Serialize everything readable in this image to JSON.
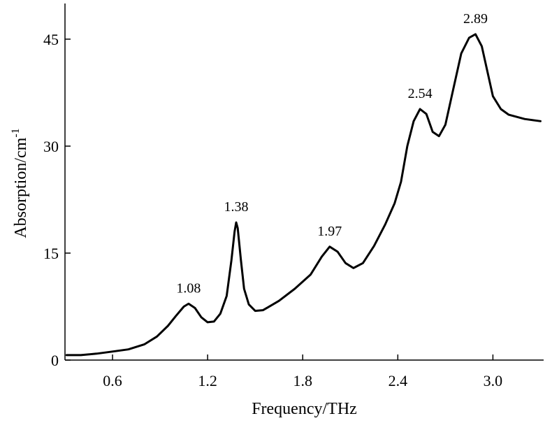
{
  "chart_data": {
    "type": "line",
    "title": "",
    "xlabel": "Frequency/THz",
    "ylabel_main": "Absorption/cm",
    "ylabel_sup": "-1",
    "xlim": [
      0.3,
      3.32
    ],
    "ylim": [
      0,
      50
    ],
    "grid": false,
    "legend": "none",
    "x_ticks": [
      {
        "value": 0.6,
        "label": "0.6"
      },
      {
        "value": 1.2,
        "label": "1.2"
      },
      {
        "value": 1.8,
        "label": "1.8"
      },
      {
        "value": 2.4,
        "label": "2.4"
      },
      {
        "value": 3.0,
        "label": "3.0"
      }
    ],
    "y_ticks": [
      {
        "value": 0,
        "label": "0"
      },
      {
        "value": 15,
        "label": "15"
      },
      {
        "value": 30,
        "label": "30"
      },
      {
        "value": 45,
        "label": "45"
      }
    ],
    "series": [
      {
        "color": "#000000",
        "points": [
          [
            0.31,
            0.7
          ],
          [
            0.4,
            0.7
          ],
          [
            0.5,
            0.9
          ],
          [
            0.6,
            1.2
          ],
          [
            0.7,
            1.5
          ],
          [
            0.8,
            2.2
          ],
          [
            0.88,
            3.3
          ],
          [
            0.95,
            4.8
          ],
          [
            1.0,
            6.2
          ],
          [
            1.05,
            7.5
          ],
          [
            1.08,
            7.9
          ],
          [
            1.12,
            7.3
          ],
          [
            1.16,
            6.0
          ],
          [
            1.2,
            5.3
          ],
          [
            1.24,
            5.4
          ],
          [
            1.28,
            6.5
          ],
          [
            1.32,
            9.0
          ],
          [
            1.35,
            14.0
          ],
          [
            1.37,
            18.0
          ],
          [
            1.38,
            19.3
          ],
          [
            1.39,
            18.5
          ],
          [
            1.41,
            14.0
          ],
          [
            1.43,
            10.0
          ],
          [
            1.46,
            7.8
          ],
          [
            1.5,
            6.9
          ],
          [
            1.55,
            7.0
          ],
          [
            1.65,
            8.3
          ],
          [
            1.75,
            10.0
          ],
          [
            1.85,
            12.0
          ],
          [
            1.92,
            14.5
          ],
          [
            1.97,
            15.9
          ],
          [
            2.02,
            15.2
          ],
          [
            2.07,
            13.6
          ],
          [
            2.12,
            12.9
          ],
          [
            2.18,
            13.6
          ],
          [
            2.25,
            16.0
          ],
          [
            2.32,
            19.0
          ],
          [
            2.38,
            22.0
          ],
          [
            2.42,
            25.0
          ],
          [
            2.46,
            30.0
          ],
          [
            2.5,
            33.5
          ],
          [
            2.54,
            35.2
          ],
          [
            2.58,
            34.5
          ],
          [
            2.62,
            32.0
          ],
          [
            2.66,
            31.4
          ],
          [
            2.7,
            33.0
          ],
          [
            2.75,
            38.0
          ],
          [
            2.8,
            43.0
          ],
          [
            2.85,
            45.2
          ],
          [
            2.89,
            45.7
          ],
          [
            2.93,
            44.0
          ],
          [
            2.97,
            40.0
          ],
          [
            3.0,
            37.0
          ],
          [
            3.05,
            35.2
          ],
          [
            3.1,
            34.4
          ],
          [
            3.2,
            33.8
          ],
          [
            3.3,
            33.5
          ]
        ]
      }
    ],
    "annotations": [
      {
        "label": "1.08",
        "x": 1.08,
        "y": 7.9
      },
      {
        "label": "1.38",
        "x": 1.38,
        "y": 19.3
      },
      {
        "label": "1.97",
        "x": 1.97,
        "y": 15.9
      },
      {
        "label": "2.54",
        "x": 2.54,
        "y": 35.2
      },
      {
        "label": "2.89",
        "x": 2.89,
        "y": 45.7
      }
    ]
  }
}
